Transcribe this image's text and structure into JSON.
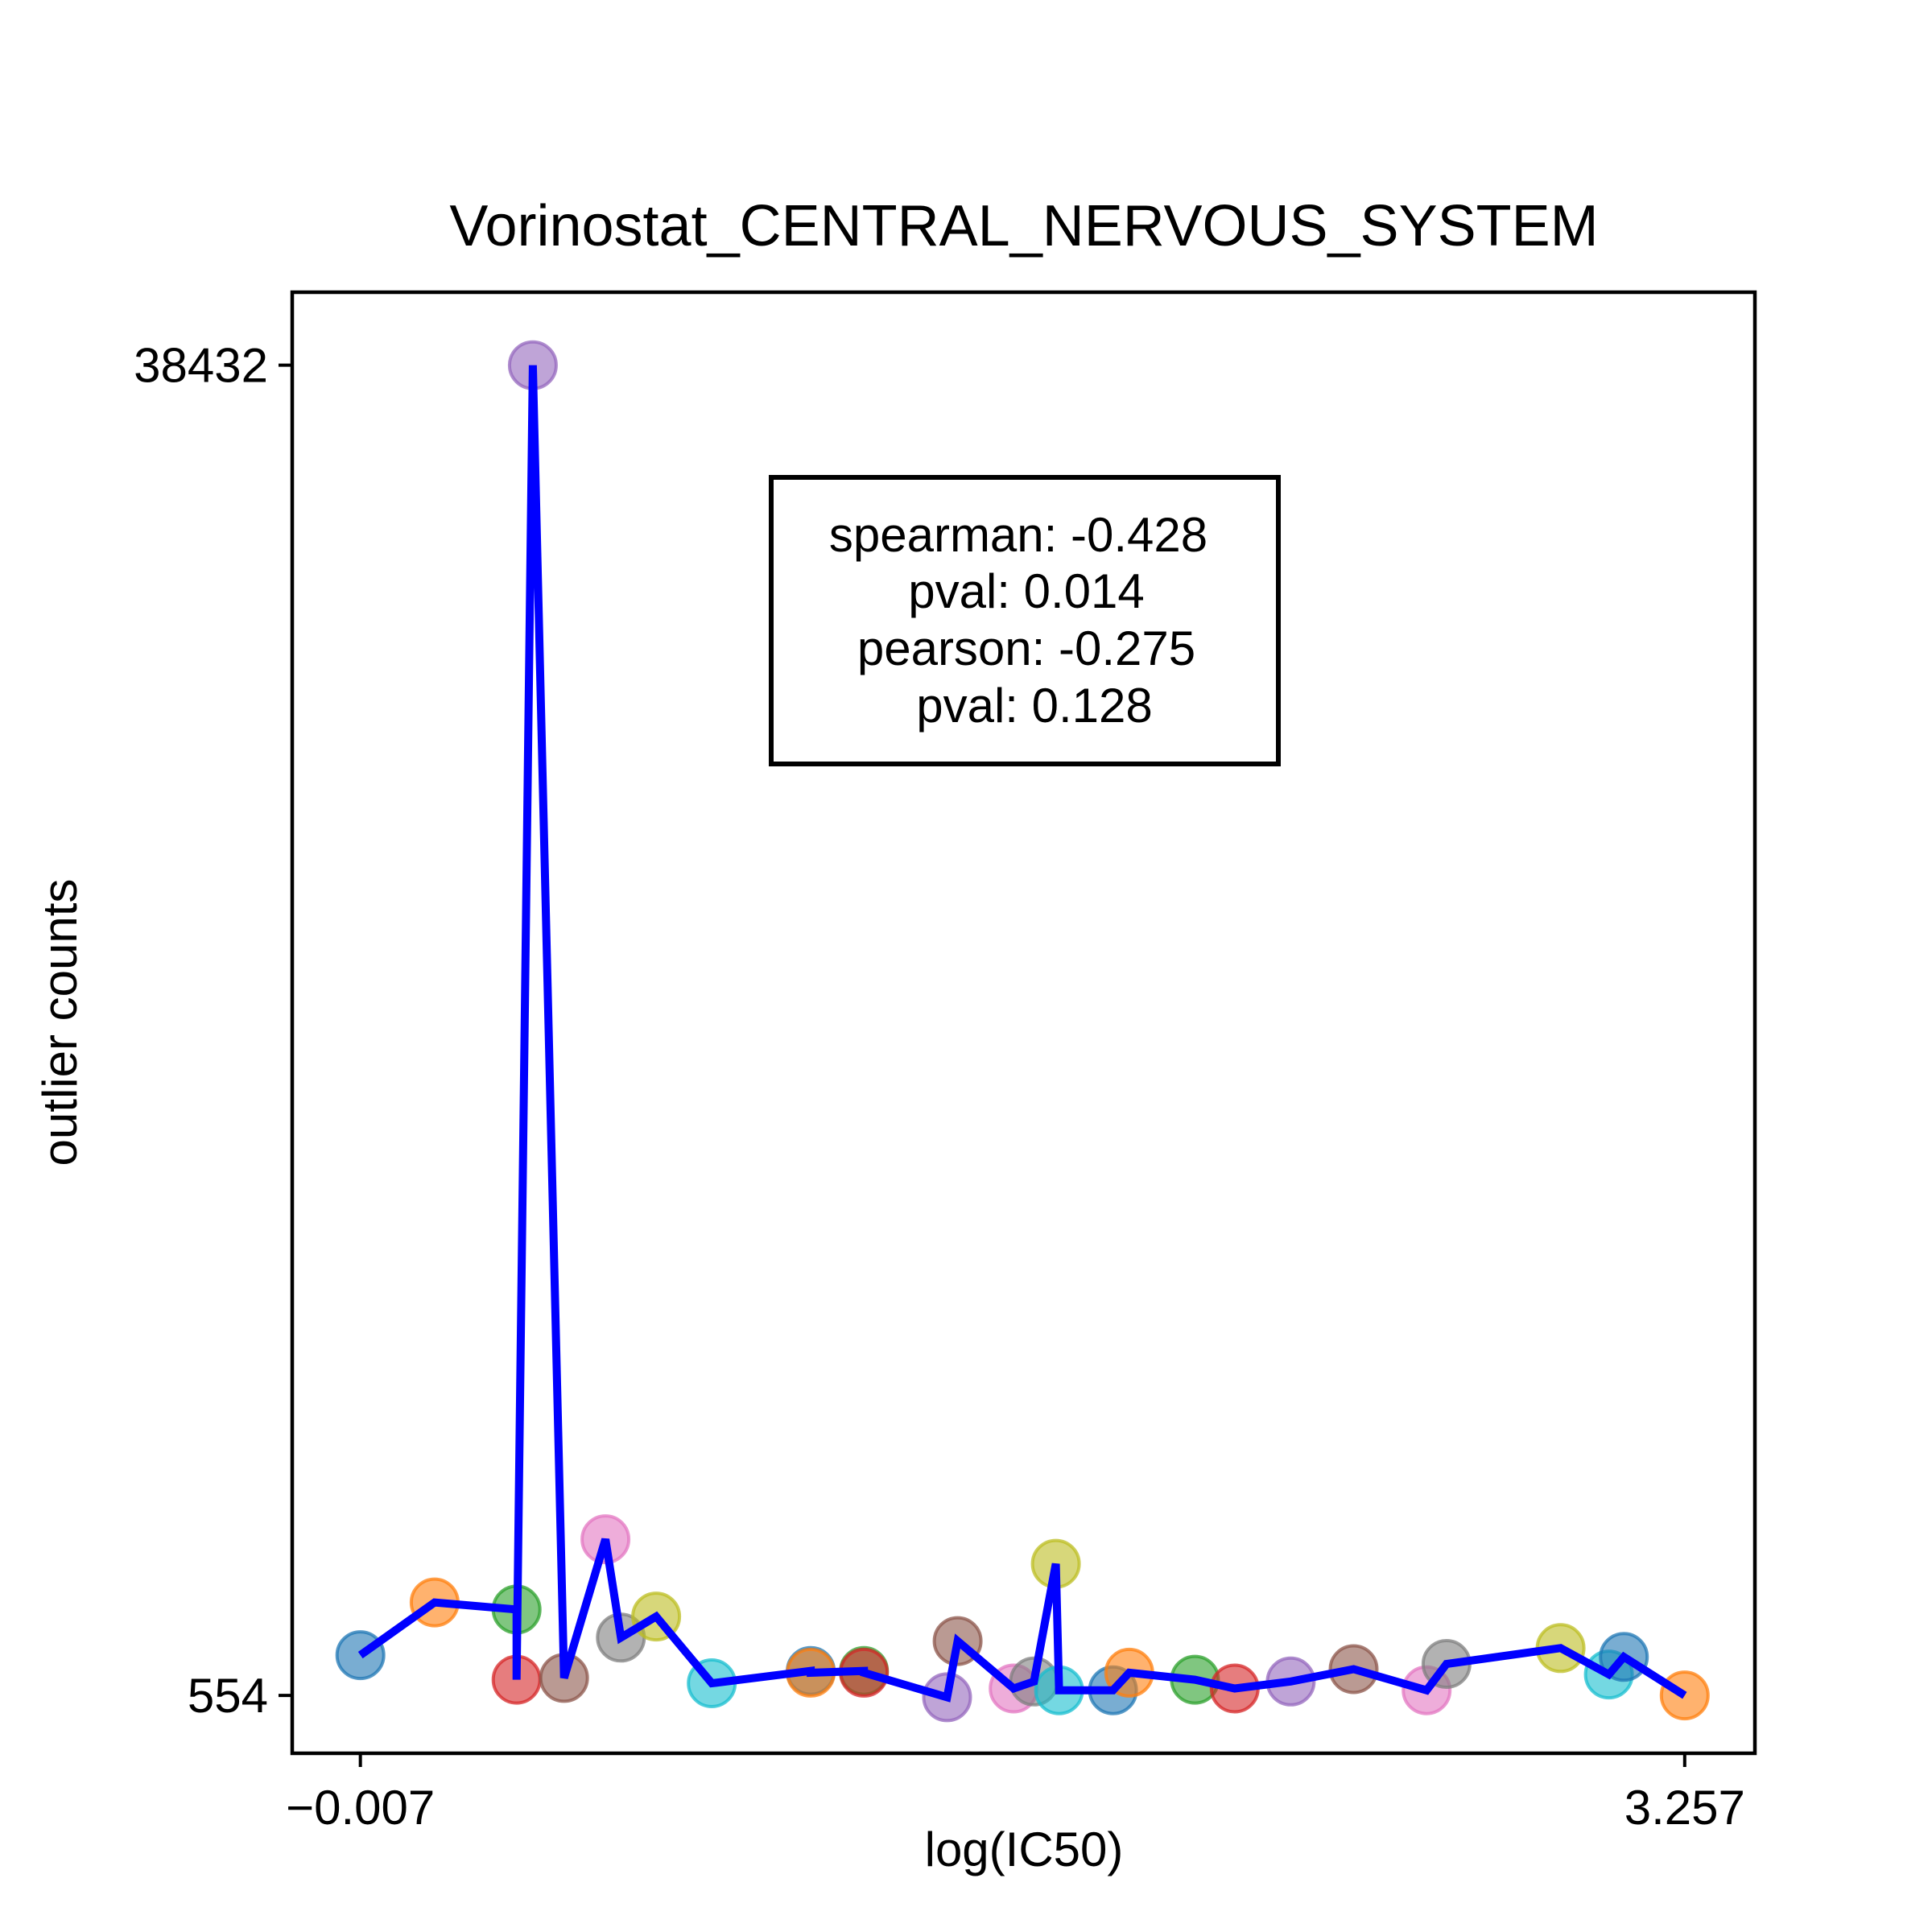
{
  "chart_data": {
    "type": "scatter",
    "title": "Vorinostat_CENTRAL_NERVOUS_SYSTEM",
    "xlabel": "log(IC50)",
    "ylabel": "outlier counts",
    "xlim": [
      -0.175,
      3.43
    ],
    "ylim": [
      -1095,
      40510
    ],
    "xticks": [
      -0.007,
      3.257
    ],
    "xtick_labels": [
      "−0.007",
      "3.257"
    ],
    "yticks": [
      554,
      38432
    ],
    "ytick_labels": [
      "554",
      "38432"
    ],
    "grid": false,
    "legend": "none",
    "annotation": {
      "lines": [
        "spearman: -0.428",
        "pval: 0.014",
        "pearson: -0.275",
        "pval: 0.128"
      ],
      "position": "upper-center"
    },
    "line_color": "#0000ff",
    "marker_colors": [
      "#1f77b4",
      "#ff7f0e",
      "#2ca02c",
      "#d62728",
      "#9467bd",
      "#8c564b",
      "#e377c2",
      "#7f7f7f",
      "#bcbd22",
      "#17becf"
    ],
    "points": [
      {
        "x": -0.007,
        "y": 1700,
        "color": "#1f77b4"
      },
      {
        "x": 0.176,
        "y": 3200,
        "color": "#ff7f0e"
      },
      {
        "x": 0.378,
        "y": 3000,
        "color": "#2ca02c"
      },
      {
        "x": 0.378,
        "y": 1000,
        "color": "#d62728"
      },
      {
        "x": 0.418,
        "y": 38432,
        "color": "#9467bd"
      },
      {
        "x": 0.495,
        "y": 1050,
        "color": "#8c564b"
      },
      {
        "x": 0.597,
        "y": 5000,
        "color": "#e377c2"
      },
      {
        "x": 0.635,
        "y": 2200,
        "color": "#7f7f7f"
      },
      {
        "x": 0.722,
        "y": 2800,
        "color": "#bcbd22"
      },
      {
        "x": 0.859,
        "y": 900,
        "color": "#17becf"
      },
      {
        "x": 1.103,
        "y": 1250,
        "color": "#1f77b4"
      },
      {
        "x": 1.103,
        "y": 1200,
        "color": "#ff7f0e"
      },
      {
        "x": 1.234,
        "y": 1250,
        "color": "#2ca02c"
      },
      {
        "x": 1.234,
        "y": 1200,
        "color": "#d62728"
      },
      {
        "x": 1.439,
        "y": 500,
        "color": "#9467bd"
      },
      {
        "x": 1.465,
        "y": 2100,
        "color": "#8c564b"
      },
      {
        "x": 1.603,
        "y": 750,
        "color": "#e377c2"
      },
      {
        "x": 1.653,
        "y": 950,
        "color": "#7f7f7f"
      },
      {
        "x": 1.707,
        "y": 4300,
        "color": "#bcbd22"
      },
      {
        "x": 1.715,
        "y": 700,
        "color": "#17becf"
      },
      {
        "x": 1.848,
        "y": 700,
        "color": "#1f77b4"
      },
      {
        "x": 1.888,
        "y": 1200,
        "color": "#ff7f0e"
      },
      {
        "x": 2.05,
        "y": 1000,
        "color": "#2ca02c"
      },
      {
        "x": 2.148,
        "y": 750,
        "color": "#d62728"
      },
      {
        "x": 2.286,
        "y": 950,
        "color": "#9467bd"
      },
      {
        "x": 2.441,
        "y": 1300,
        "color": "#8c564b"
      },
      {
        "x": 2.621,
        "y": 700,
        "color": "#e377c2"
      },
      {
        "x": 2.67,
        "y": 1450,
        "color": "#7f7f7f"
      },
      {
        "x": 2.951,
        "y": 1900,
        "color": "#bcbd22"
      },
      {
        "x": 3.07,
        "y": 1150,
        "color": "#17becf"
      },
      {
        "x": 3.107,
        "y": 1650,
        "color": "#1f77b4"
      },
      {
        "x": 3.257,
        "y": 554,
        "color": "#ff7f0e"
      }
    ]
  }
}
